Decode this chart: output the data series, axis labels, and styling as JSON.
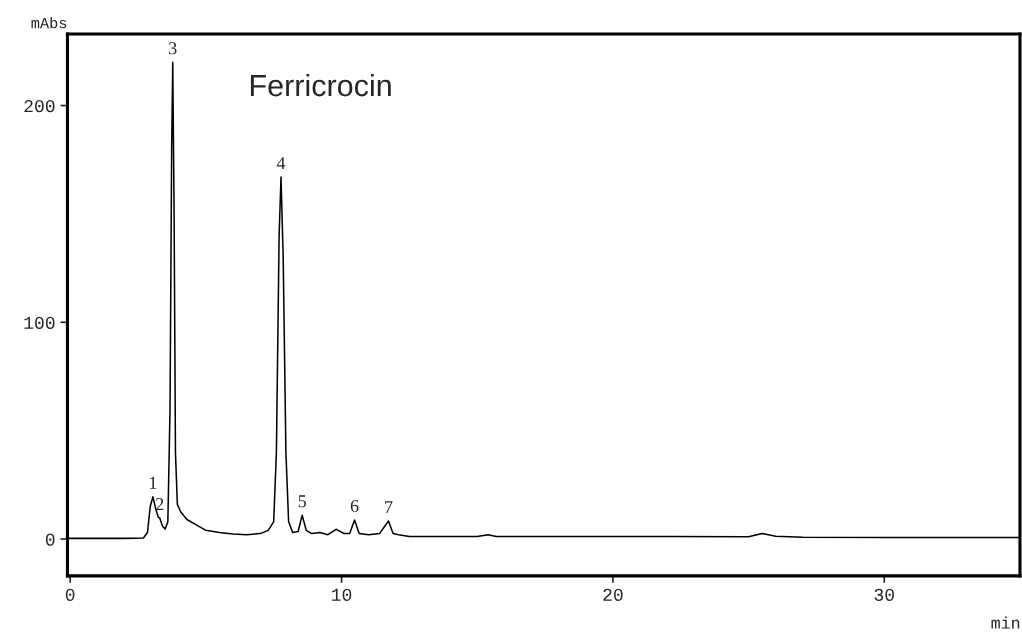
{
  "chart_data": {
    "type": "line",
    "title": "Ferricrocin",
    "xlabel": "min",
    "ylabel": "mAbs",
    "color": "#000000",
    "x": [
      -0.1,
      1,
      2,
      2.7,
      2.85,
      2.95,
      3.05,
      3.15,
      3.25,
      3.3,
      3.4,
      3.5,
      3.6,
      3.68,
      3.74,
      3.78,
      3.83,
      3.88,
      3.95,
      4.07,
      4.3,
      4.65,
      5.0,
      5.5,
      6,
      6.5,
      7,
      7.3,
      7.5,
      7.6,
      7.7,
      7.77,
      7.85,
      7.95,
      8.05,
      8.2,
      8.4,
      8.55,
      8.7,
      8.9,
      9.2,
      9.5,
      9.8,
      10.1,
      10.3,
      10.48,
      10.65,
      11,
      11.4,
      11.73,
      11.9,
      12.1,
      12.5,
      13,
      15,
      15.4,
      15.7,
      18,
      22,
      25,
      25.5,
      26,
      27,
      30,
      35
    ],
    "values": [
      0.3,
      0.3,
      0.3,
      0.5,
      3,
      15,
      19.5,
      14,
      10,
      9.7,
      6,
      4.6,
      8,
      60,
      180,
      220,
      150,
      40,
      16,
      12.6,
      9,
      6.5,
      4,
      3,
      2.3,
      2,
      2.5,
      4,
      8,
      40,
      140,
      167,
      130,
      40,
      8,
      3,
      3.5,
      11,
      4,
      2.5,
      3,
      2,
      4.5,
      2.5,
      2.5,
      8.8,
      2.5,
      2,
      2.5,
      8.3,
      2.5,
      2,
      1.2,
      1.2,
      1.2,
      2,
      1.2,
      1.2,
      1.2,
      1.0,
      2.5,
      1.3,
      0.8,
      0.7,
      0.7
    ],
    "xlim": [
      -0.1,
      35
    ],
    "ylim": [
      -17,
      233
    ],
    "xticks": [
      0,
      10,
      20,
      30
    ],
    "yticks": [
      0,
      100,
      200
    ],
    "annotations": [
      {
        "text": "1",
        "x": 3.05,
        "y": 19.5
      },
      {
        "text": "2",
        "x": 3.3,
        "y": 9.7
      },
      {
        "text": "3",
        "x": 3.78,
        "y": 220
      },
      {
        "text": "4",
        "x": 7.77,
        "y": 167
      },
      {
        "text": "5",
        "x": 8.55,
        "y": 11
      },
      {
        "text": "6",
        "x": 10.48,
        "y": 8.8
      },
      {
        "text": "7",
        "x": 11.73,
        "y": 8.3
      }
    ]
  }
}
